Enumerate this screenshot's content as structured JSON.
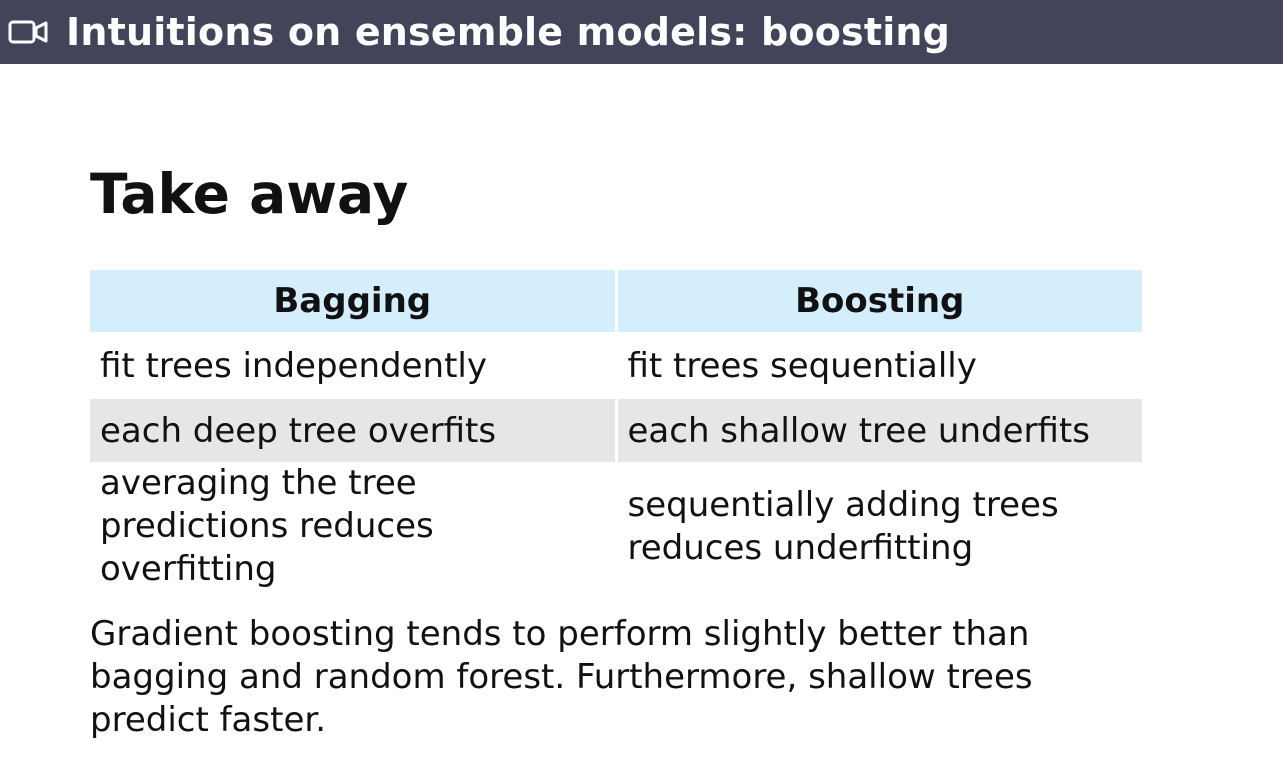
{
  "window": {
    "title": "Intuitions on ensemble models: boosting",
    "icon": "video-icon"
  },
  "slide": {
    "heading": "Take away",
    "table": {
      "headers": [
        "Bagging",
        "Boosting"
      ],
      "rows": [
        [
          "fit trees independently",
          "fit trees sequentially"
        ],
        [
          "each deep tree overfits",
          "each shallow tree underfits"
        ],
        [
          "averaging the tree predictions reduces overfitting",
          "sequentially adding trees reduces underfitting"
        ]
      ]
    },
    "summary": "Gradient boosting tends to perform slightly better than bagging and random forest. Furthermore, shallow trees predict faster."
  },
  "colors": {
    "title_bar": "#42455a",
    "header_fill": "#d4eefb",
    "stripe_fill": "#e6e6e6"
  }
}
